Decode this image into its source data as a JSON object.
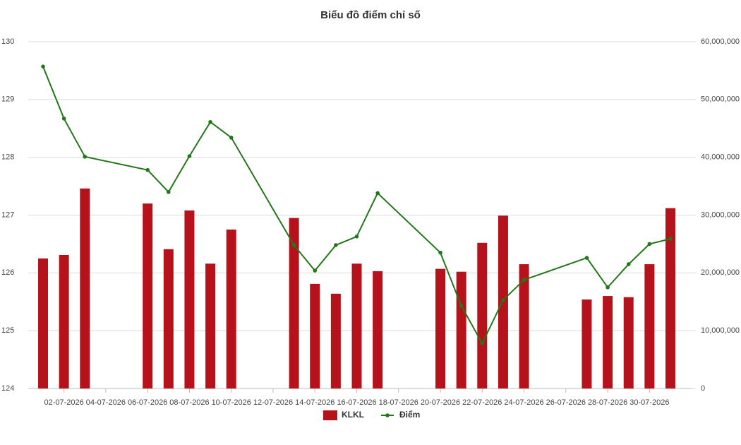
{
  "chart_data": {
    "type": "combo",
    "title": "Biểu đồ điểm chỉ số",
    "categories": [
      null,
      "02-07-2026",
      null,
      "04-07-2026",
      null,
      "06-07-2026",
      null,
      "08-07-2026",
      null,
      "10-07-2026",
      null,
      "12-07-2026",
      null,
      "14-07-2026",
      null,
      "16-07-2026",
      null,
      "18-07-2026",
      null,
      "20-07-2026",
      null,
      "22-07-2026",
      null,
      "24-07-2026",
      null,
      "26-07-2026",
      null,
      "28-07-2026",
      null,
      "30-07-2026",
      null
    ],
    "series": [
      {
        "name": "KLKL",
        "type": "bar",
        "axis": "y2",
        "color": "#b5121b",
        "values": [
          22500000,
          23100000,
          34600000,
          null,
          null,
          32000000,
          24100000,
          30800000,
          21600000,
          27500000,
          null,
          null,
          29500000,
          18100000,
          16400000,
          21600000,
          20300000,
          null,
          null,
          20700000,
          20200000,
          25200000,
          29900000,
          21500000,
          null,
          null,
          15400000,
          16000000,
          15800000,
          21500000,
          31200000
        ]
      },
      {
        "name": "Điểm",
        "type": "line",
        "axis": "y",
        "color": "#23761a",
        "values": [
          129.57,
          128.67,
          128.01,
          null,
          null,
          127.78,
          127.4,
          128.02,
          128.61,
          128.34,
          null,
          null,
          126.48,
          126.04,
          126.48,
          126.63,
          127.38,
          null,
          null,
          126.35,
          125.43,
          124.78,
          125.53,
          125.88,
          null,
          null,
          126.26,
          125.75,
          126.15,
          126.5,
          126.59
        ]
      }
    ],
    "connect_gaps": true,
    "ylim": [
      124,
      130
    ],
    "yticks": [
      124,
      125,
      126,
      127,
      128,
      129,
      130
    ],
    "y2lim": [
      0,
      60000000
    ],
    "y2ticks": [
      0,
      {
        "value": 10000000,
        "label": "10,000,000"
      },
      {
        "value": 20000000,
        "label": "20,000,000"
      },
      {
        "value": 30000000,
        "label": "30,000,000"
      },
      {
        "value": 40000000,
        "label": "40,000,000"
      },
      {
        "value": 50000000,
        "label": "50,000,000"
      },
      {
        "value": 60000000,
        "label": "60,000,000"
      }
    ],
    "grid": true,
    "legend": "bottom"
  }
}
